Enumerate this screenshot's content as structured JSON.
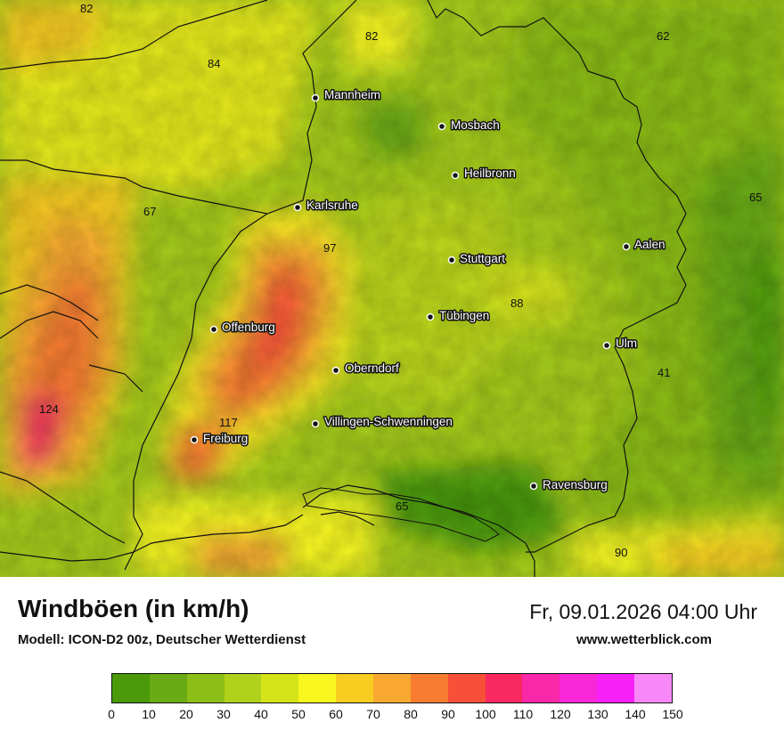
{
  "footer": {
    "title": "Windböen (in km/h)",
    "subtitle": "Modell: ICON-D2 00z, Deutscher Wetterdienst",
    "datetime": "Fr, 09.01.2026 04:00 Uhr",
    "website": "www.wetterblick.com"
  },
  "cities": [
    {
      "name": "Mannheim"
    },
    {
      "name": "Mosbach"
    },
    {
      "name": "Heilbronn"
    },
    {
      "name": "Karlsruhe"
    },
    {
      "name": "Aalen"
    },
    {
      "name": "Stuttgart"
    },
    {
      "name": "Tübingen"
    },
    {
      "name": "Offenburg"
    },
    {
      "name": "Ulm"
    },
    {
      "name": "Oberndorf"
    },
    {
      "name": "Villingen-Schwenningen"
    },
    {
      "name": "Freiburg"
    },
    {
      "name": "Ravensburg"
    }
  ],
  "values": [
    "82",
    "82",
    "84",
    "62",
    "67",
    "65",
    "97",
    "88",
    "41",
    "124",
    "117",
    "65",
    "90"
  ],
  "legend": {
    "colors": [
      "#4a9a0a",
      "#6aaa14",
      "#8cbe18",
      "#b0d21a",
      "#d4e418",
      "#f8f820",
      "#f8cc20",
      "#f8a830",
      "#f87c30",
      "#f85038",
      "#f82860",
      "#f828a8",
      "#f828d8",
      "#f820f8",
      "#f888f8"
    ],
    "ticks": [
      "0",
      "10",
      "20",
      "30",
      "40",
      "50",
      "60",
      "70",
      "80",
      "90",
      "100",
      "110",
      "120",
      "130",
      "140",
      "150"
    ]
  }
}
